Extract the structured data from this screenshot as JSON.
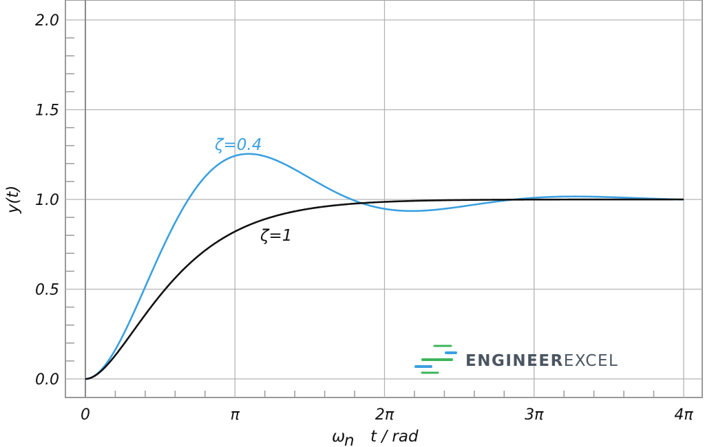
{
  "chart_data": {
    "type": "line",
    "xlabel": "ωn  t / rad",
    "xlabel_main": "ω",
    "xlabel_sub": "n",
    "xlabel_rest": "t / rad",
    "ylabel": "y(t)",
    "xlim_multiples_of_pi": [
      0,
      4
    ],
    "ylim": [
      0,
      2.0
    ],
    "x_ticks": [
      {
        "value_pi": 0,
        "label": "0"
      },
      {
        "value_pi": 1,
        "label": "π"
      },
      {
        "value_pi": 2,
        "label": "2π"
      },
      {
        "value_pi": 3,
        "label": "3π"
      },
      {
        "value_pi": 4,
        "label": "4π"
      }
    ],
    "y_ticks": [
      {
        "value": 0.0,
        "label": "0.0"
      },
      {
        "value": 0.5,
        "label": "0.5"
      },
      {
        "value": 1.0,
        "label": "1.0"
      },
      {
        "value": 1.5,
        "label": "1.5"
      },
      {
        "value": 2.0,
        "label": "2.0"
      }
    ],
    "grid": true,
    "series": [
      {
        "name": "ζ=0.4",
        "zeta": 0.4,
        "color": "#3aa0e0",
        "sample_points": [
          [
            0,
            0
          ],
          [
            1.1,
            1.254
          ],
          [
            2.2,
            0.94
          ],
          [
            3.3,
            1.016
          ],
          [
            4,
            1.0
          ]
        ]
      },
      {
        "name": "ζ=1",
        "zeta": 1.0,
        "color": "#111111",
        "sample_points": [
          [
            0,
            0
          ],
          [
            1,
            0.84
          ],
          [
            2,
            0.985
          ],
          [
            3,
            0.999
          ],
          [
            4,
            1.0
          ]
        ]
      }
    ]
  },
  "logo": {
    "text_bold": "ENGINEER",
    "text_light": "EXCEL",
    "colors": {
      "green": "#3cb55a",
      "blue": "#3aa0e0",
      "text": "#4a5561"
    }
  }
}
